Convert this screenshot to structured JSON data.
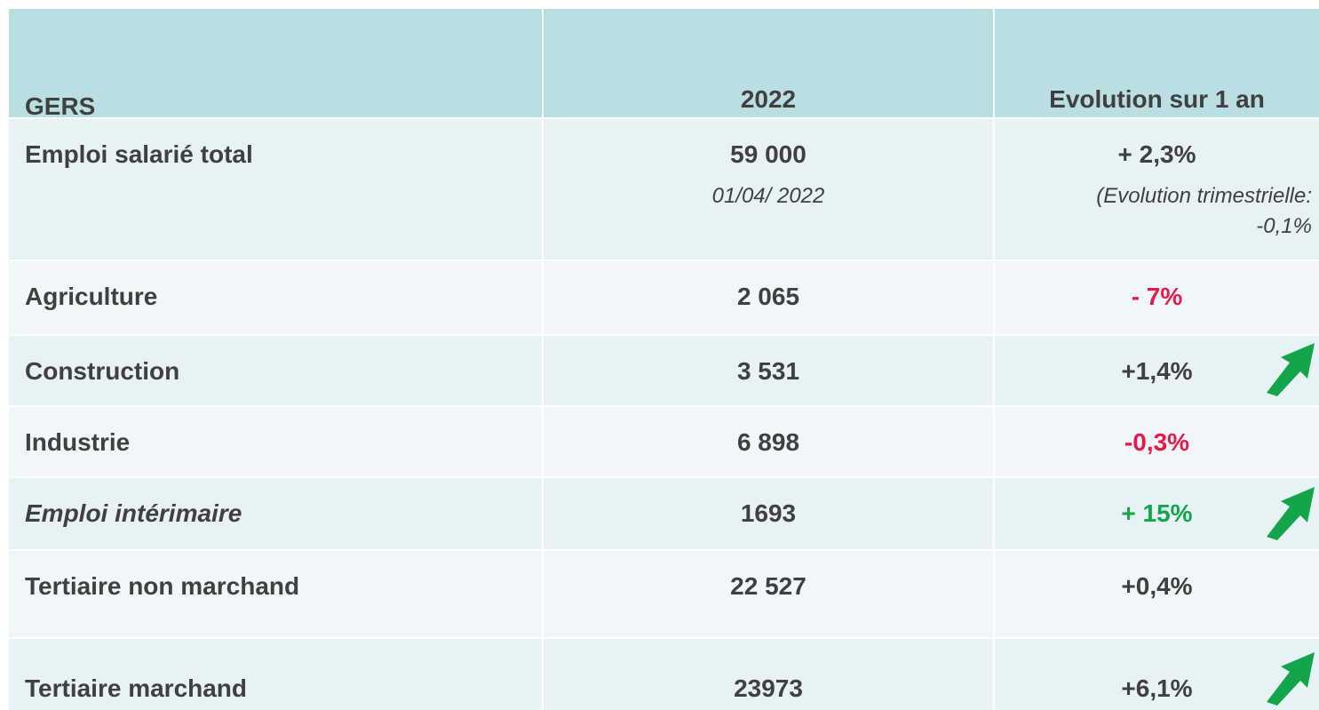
{
  "table": {
    "header": [
      "GERS",
      "2022",
      "Evolution sur 1 an"
    ],
    "rows": [
      {
        "label": "Emploi salarié total",
        "value": "59 000",
        "date": "01/04/ 2022",
        "evolution": "+ 2,3%",
        "note": [
          "(Evolution trimestrielle:",
          "-0,1%"
        ]
      },
      {
        "label": "Agriculture",
        "value": "2 065",
        "evolution": "- 7%",
        "color": "#e8194a"
      },
      {
        "label": "Construction",
        "value": "3 531",
        "evolution": "+1,4%",
        "arrow": "up"
      },
      {
        "label": "Industrie",
        "value": "6 898",
        "evolution": "-0,3%",
        "color": "#e8194a"
      },
      {
        "label": "Emploi intérimaire",
        "value": "1693",
        "evolution": "+ 15%",
        "color": "#13a54a",
        "italic": true,
        "arrow": "up"
      },
      {
        "label": "Tertiaire non marchand",
        "value": "22 527",
        "evolution": "+0,4%"
      },
      {
        "label": "Tertiaire marchand",
        "value": "23973",
        "evolution": "+6,1%",
        "arrow": "up"
      }
    ]
  }
}
